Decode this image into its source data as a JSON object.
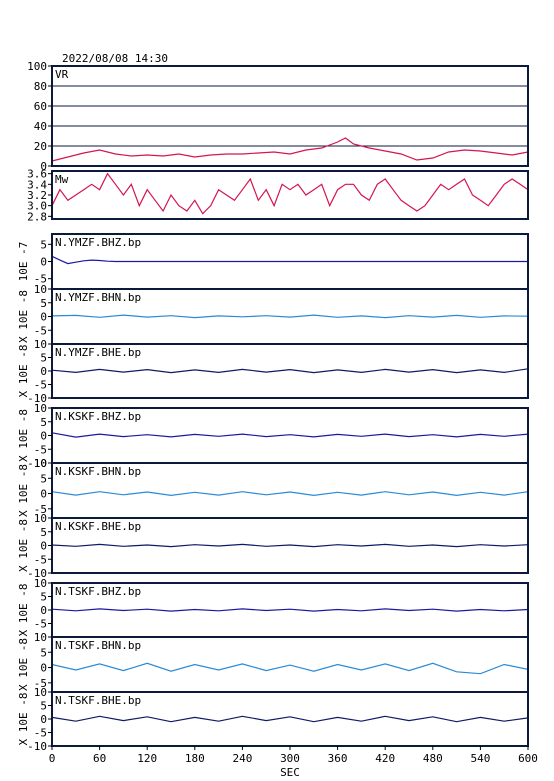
{
  "header": {
    "datetime": "2022/08/08  14:30"
  },
  "chart_data": {
    "type": "line",
    "xlabel": "SEC",
    "x_ticks": [
      0,
      60,
      120,
      180,
      240,
      300,
      360,
      420,
      480,
      540,
      600
    ],
    "xlim": [
      0,
      600
    ],
    "panels": [
      {
        "id": "vr",
        "label": "VR",
        "ylim": [
          0,
          100
        ],
        "yticks": [
          "0",
          "20",
          "40",
          "60",
          "80",
          "100"
        ],
        "yticks_values": [
          0,
          20,
          40,
          60,
          80,
          100
        ],
        "grid": true,
        "color": "#d4154f",
        "series": {
          "x": [
            0,
            20,
            40,
            60,
            80,
            100,
            120,
            140,
            160,
            180,
            200,
            220,
            240,
            260,
            280,
            300,
            320,
            340,
            360,
            370,
            380,
            400,
            420,
            440,
            460,
            480,
            500,
            520,
            540,
            560,
            580,
            600
          ],
          "y": [
            5,
            9,
            13,
            16,
            12,
            10,
            11,
            10,
            12,
            9,
            11,
            12,
            12,
            13,
            14,
            12,
            16,
            18,
            24,
            28,
            22,
            18,
            15,
            12,
            6,
            8,
            14,
            16,
            15,
            13,
            11,
            14
          ]
        }
      },
      {
        "id": "mw",
        "label": "Mw",
        "ylim": [
          2.75,
          3.65
        ],
        "yticks": [
          "2.8",
          "3.0",
          "3.2",
          "3.4",
          "3.6"
        ],
        "yticks_values": [
          2.8,
          3.0,
          3.2,
          3.4,
          3.6
        ],
        "grid": false,
        "color": "#d4154f",
        "series": {
          "x": [
            0,
            10,
            20,
            30,
            40,
            50,
            60,
            70,
            80,
            90,
            100,
            110,
            120,
            130,
            140,
            150,
            160,
            170,
            180,
            190,
            200,
            210,
            220,
            230,
            240,
            250,
            260,
            270,
            280,
            290,
            300,
            310,
            320,
            330,
            340,
            350,
            360,
            370,
            380,
            390,
            400,
            410,
            420,
            430,
            440,
            450,
            460,
            470,
            480,
            490,
            500,
            510,
            520,
            530,
            540,
            550,
            560,
            570,
            580,
            590,
            600
          ],
          "y": [
            3.0,
            3.3,
            3.1,
            3.2,
            3.3,
            3.4,
            3.3,
            3.6,
            3.4,
            3.2,
            3.4,
            3.0,
            3.3,
            3.1,
            2.9,
            3.2,
            3.0,
            2.9,
            3.1,
            2.85,
            3.0,
            3.3,
            3.2,
            3.1,
            3.3,
            3.5,
            3.1,
            3.3,
            3.0,
            3.4,
            3.3,
            3.4,
            3.2,
            3.3,
            3.4,
            3.0,
            3.3,
            3.4,
            3.4,
            3.2,
            3.1,
            3.4,
            3.5,
            3.3,
            3.1,
            3.0,
            2.9,
            3.0,
            3.2,
            3.4,
            3.3,
            3.4,
            3.5,
            3.2,
            3.1,
            3.0,
            3.2,
            3.4,
            3.5,
            3.4,
            3.3
          ]
        }
      },
      {
        "id": "ymzf-bhz",
        "label": "N.YMZF.BHZ.bp",
        "unit": "10E -7",
        "ylim": [
          -8,
          8
        ],
        "yticks": [
          "-5",
          "0",
          "5"
        ],
        "yticks_values": [
          -5,
          0,
          5
        ],
        "color": "#1a1aa0",
        "series": {
          "x": [
            0,
            10,
            20,
            30,
            40,
            50,
            60,
            70,
            80,
            100,
            150,
            200,
            300,
            400,
            500,
            600
          ],
          "y": [
            1.5,
            0.4,
            -0.6,
            -0.2,
            0.2,
            0.4,
            0.3,
            0.1,
            0.0,
            0.0,
            0.0,
            0.0,
            0.0,
            0.0,
            0.0,
            0.0
          ]
        }
      },
      {
        "id": "ymzf-bhn",
        "label": "N.YMZF.BHN.bp",
        "unit": "X 10E -8",
        "ylim": [
          -10,
          10
        ],
        "yticks": [
          "-5",
          "0",
          "5",
          "10"
        ],
        "yticks_values": [
          -5,
          0,
          5,
          10
        ],
        "color": "#2b8ad6",
        "series": {
          "x": [
            0,
            30,
            60,
            90,
            120,
            150,
            180,
            210,
            240,
            270,
            300,
            330,
            360,
            390,
            420,
            450,
            480,
            510,
            540,
            570,
            600
          ],
          "y": [
            0.2,
            0.4,
            -0.3,
            0.5,
            -0.2,
            0.3,
            -0.4,
            0.2,
            -0.1,
            0.3,
            -0.2,
            0.5,
            -0.3,
            0.2,
            -0.4,
            0.3,
            -0.2,
            0.4,
            -0.3,
            0.2,
            0.1
          ]
        }
      },
      {
        "id": "ymzf-bhe",
        "label": "N.YMZF.BHE.bp",
        "unit": "X 10E -8",
        "ylim": [
          -10,
          10
        ],
        "yticks": [
          "-10",
          "-5",
          "0",
          "5",
          "10"
        ],
        "yticks_values": [
          -10,
          -5,
          0,
          5,
          10
        ],
        "color": "#0d1a66",
        "series": {
          "x": [
            0,
            30,
            60,
            90,
            120,
            150,
            180,
            210,
            240,
            270,
            300,
            330,
            360,
            390,
            420,
            450,
            480,
            510,
            540,
            570,
            600
          ],
          "y": [
            0.3,
            -0.5,
            0.6,
            -0.4,
            0.5,
            -0.6,
            0.4,
            -0.5,
            0.6,
            -0.4,
            0.5,
            -0.6,
            0.4,
            -0.5,
            0.6,
            -0.4,
            0.5,
            -0.6,
            0.4,
            -0.5,
            0.8
          ]
        }
      },
      {
        "id": "kskf-bhz",
        "label": "N.KSKF.BHZ.bp",
        "unit": "X 10E -8",
        "ylim": [
          -10,
          10
        ],
        "yticks": [
          "-10",
          "-5",
          "0",
          "5",
          "10"
        ],
        "yticks_values": [
          -10,
          -5,
          0,
          5,
          10
        ],
        "color": "#1a1aa0",
        "series": {
          "x": [
            0,
            30,
            60,
            90,
            120,
            150,
            180,
            210,
            240,
            270,
            300,
            330,
            360,
            390,
            420,
            450,
            480,
            510,
            540,
            570,
            600
          ],
          "y": [
            1.0,
            -0.6,
            0.5,
            -0.4,
            0.3,
            -0.5,
            0.4,
            -0.3,
            0.5,
            -0.4,
            0.3,
            -0.5,
            0.4,
            -0.3,
            0.5,
            -0.4,
            0.3,
            -0.5,
            0.4,
            -0.3,
            0.5
          ]
        }
      },
      {
        "id": "kskf-bhn",
        "label": "N.KSKF.BHN.bp",
        "unit": "X 10E -8",
        "ylim": [
          -8,
          10
        ],
        "yticks": [
          "-5",
          "0",
          "5",
          "10"
        ],
        "yticks_values": [
          -5,
          0,
          5,
          10
        ],
        "color": "#2b8ad6",
        "series": {
          "x": [
            0,
            30,
            60,
            90,
            120,
            150,
            180,
            210,
            240,
            270,
            300,
            330,
            360,
            390,
            420,
            450,
            480,
            510,
            540,
            570,
            600
          ],
          "y": [
            0.6,
            -0.5,
            0.6,
            -0.4,
            0.5,
            -0.6,
            0.4,
            -0.5,
            0.6,
            -0.4,
            0.5,
            -0.6,
            0.4,
            -0.5,
            0.6,
            -0.4,
            0.5,
            -0.6,
            0.4,
            -0.5,
            0.6
          ]
        }
      },
      {
        "id": "kskf-bhe",
        "label": "N.KSKF.BHE.bp",
        "unit": "X 10E -8",
        "ylim": [
          -10,
          10
        ],
        "yticks": [
          "-10",
          "-5",
          "0",
          "5",
          "10"
        ],
        "yticks_values": [
          -10,
          -5,
          0,
          5,
          10
        ],
        "color": "#0d1a66",
        "series": {
          "x": [
            0,
            30,
            60,
            90,
            120,
            150,
            180,
            210,
            240,
            270,
            300,
            330,
            360,
            390,
            420,
            450,
            480,
            510,
            540,
            570,
            600
          ],
          "y": [
            0.2,
            -0.3,
            0.4,
            -0.3,
            0.2,
            -0.4,
            0.3,
            -0.2,
            0.4,
            -0.3,
            0.2,
            -0.4,
            0.3,
            -0.2,
            0.4,
            -0.3,
            0.2,
            -0.4,
            0.3,
            -0.2,
            0.3
          ]
        }
      },
      {
        "id": "tskf-bhz",
        "label": "N.TSKF.BHZ.bp",
        "unit": "X 10E -8",
        "ylim": [
          -10,
          10
        ],
        "yticks": [
          "-5",
          "0",
          "5",
          "10"
        ],
        "yticks_values": [
          -5,
          0,
          5,
          10
        ],
        "color": "#1a1aa0",
        "series": {
          "x": [
            0,
            30,
            60,
            90,
            120,
            150,
            180,
            210,
            240,
            270,
            300,
            330,
            360,
            390,
            420,
            450,
            480,
            510,
            540,
            570,
            600
          ],
          "y": [
            0.3,
            -0.3,
            0.4,
            -0.2,
            0.3,
            -0.4,
            0.2,
            -0.3,
            0.4,
            -0.2,
            0.3,
            -0.4,
            0.2,
            -0.3,
            0.4,
            -0.2,
            0.3,
            -0.4,
            0.2,
            -0.3,
            0.2
          ]
        }
      },
      {
        "id": "tskf-bhn",
        "label": "N.TSKF.BHN.bp",
        "unit": "X 10E -8",
        "ylim": [
          -8,
          10
        ],
        "yticks": [
          "-5",
          "0",
          "5",
          "10"
        ],
        "yticks_values": [
          -5,
          0,
          5,
          10
        ],
        "color": "#2b8ad6",
        "series": {
          "x": [
            0,
            30,
            60,
            90,
            120,
            150,
            180,
            210,
            240,
            270,
            300,
            330,
            360,
            390,
            420,
            450,
            480,
            510,
            540,
            570,
            600
          ],
          "y": [
            1.0,
            -0.8,
            1.2,
            -1.0,
            1.4,
            -1.2,
            1.0,
            -0.8,
            1.2,
            -1.0,
            0.8,
            -1.2,
            1.0,
            -0.8,
            1.2,
            -1.0,
            1.4,
            -1.4,
            -2.0,
            1.0,
            -0.6
          ]
        }
      },
      {
        "id": "tskf-bhe",
        "label": "N.TSKF.BHE.bp",
        "unit": "X 10E -8",
        "ylim": [
          -10,
          10
        ],
        "yticks": [
          "-10",
          "-5",
          "0",
          "5",
          "10"
        ],
        "yticks_values": [
          -10,
          -5,
          0,
          5,
          10
        ],
        "color": "#0d1a66",
        "series": {
          "x": [
            0,
            30,
            60,
            90,
            120,
            150,
            180,
            210,
            240,
            270,
            300,
            330,
            360,
            390,
            420,
            450,
            480,
            510,
            540,
            570,
            600
          ],
          "y": [
            0.6,
            -0.8,
            1.0,
            -0.6,
            0.8,
            -1.0,
            0.6,
            -0.8,
            1.0,
            -0.6,
            0.8,
            -1.0,
            0.6,
            -0.8,
            1.0,
            -0.6,
            0.8,
            -1.0,
            0.6,
            -0.8,
            0.4
          ]
        }
      }
    ]
  }
}
